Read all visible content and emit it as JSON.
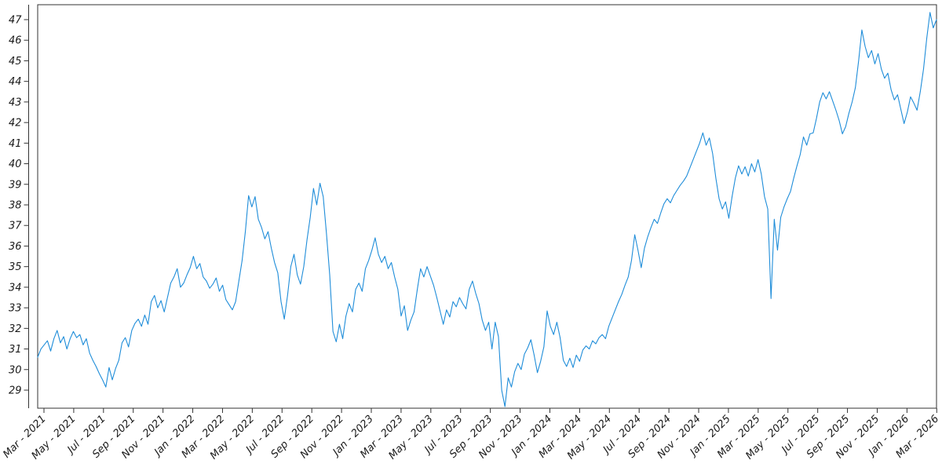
{
  "chart_data": {
    "type": "line",
    "title": "",
    "xlabel": "",
    "ylabel": "",
    "grid": false,
    "legend_position": "none",
    "line_color": "#1f8dd9",
    "axis_color": "#333333",
    "tick_label_color": "#1a1a1a",
    "ylim": [
      28.0,
      47.7
    ],
    "y_tick_values": [
      29,
      30,
      31,
      32,
      33,
      34,
      35,
      36,
      37,
      38,
      39,
      40,
      41,
      42,
      43,
      44,
      45,
      46,
      47
    ],
    "x_tick_labels": [
      "Mar - 2021",
      "May - 2021",
      "Jul - 2021",
      "Sep - 2021",
      "Nov - 2021",
      "Jan - 2022",
      "Mar - 2022",
      "May - 2022",
      "Jul - 2022",
      "Sep - 2022",
      "Nov - 2022",
      "Jan - 2023",
      "Mar - 2023",
      "May - 2023",
      "Jul - 2023",
      "Sep - 2023",
      "Nov - 2023",
      "Jan - 2024",
      "Mar - 2024",
      "May - 2024",
      "Jul - 2024",
      "Sep - 2024",
      "Nov - 2024",
      "Jan - 2025",
      "Mar - 2025",
      "May - 2025",
      "Jul - 2025",
      "Sep - 2025",
      "Nov - 2025",
      "Jan - 2026",
      "Mar - 2026"
    ],
    "x_range_label": "Mar 2021 to Mar 2026",
    "sampling": "weekly",
    "values": [
      30.6,
      31.0,
      31.2,
      31.4,
      30.9,
      31.5,
      31.9,
      31.3,
      31.6,
      31.0,
      31.5,
      31.85,
      31.55,
      31.7,
      31.2,
      31.5,
      30.8,
      30.45,
      30.15,
      29.8,
      29.5,
      29.15,
      30.1,
      29.5,
      30.05,
      30.45,
      31.3,
      31.55,
      31.1,
      31.9,
      32.25,
      32.45,
      32.1,
      32.65,
      32.2,
      33.3,
      33.6,
      33.0,
      33.35,
      32.8,
      33.5,
      34.2,
      34.5,
      34.9,
      34.0,
      34.2,
      34.6,
      34.95,
      35.5,
      34.9,
      35.15,
      34.5,
      34.3,
      33.95,
      34.15,
      34.45,
      33.8,
      34.1,
      33.4,
      33.15,
      32.9,
      33.3,
      34.3,
      35.3,
      36.7,
      38.45,
      37.9,
      38.4,
      37.3,
      36.9,
      36.35,
      36.7,
      35.9,
      35.2,
      34.7,
      33.3,
      32.45,
      33.6,
      35.0,
      35.6,
      34.6,
      34.15,
      35.0,
      36.3,
      37.4,
      38.8,
      38.0,
      39.05,
      38.4,
      36.6,
      34.6,
      31.85,
      31.35,
      32.2,
      31.5,
      32.6,
      33.2,
      32.8,
      33.9,
      34.2,
      33.8,
      34.9,
      35.3,
      35.8,
      36.4,
      35.6,
      35.2,
      35.5,
      34.9,
      35.2,
      34.5,
      33.9,
      32.6,
      33.1,
      31.9,
      32.4,
      32.8,
      33.9,
      34.9,
      34.5,
      35.0,
      34.55,
      34.1,
      33.5,
      32.85,
      32.2,
      32.9,
      32.55,
      33.3,
      33.05,
      33.5,
      33.2,
      32.95,
      33.9,
      34.3,
      33.7,
      33.2,
      32.4,
      31.9,
      32.3,
      31.0,
      32.3,
      31.6,
      29.0,
      28.2,
      29.6,
      29.15,
      29.9,
      30.3,
      30.0,
      30.75,
      31.05,
      31.45,
      30.7,
      29.85,
      30.4,
      31.1,
      32.85,
      32.1,
      31.7,
      32.3,
      31.55,
      30.45,
      30.15,
      30.55,
      30.1,
      30.7,
      30.4,
      30.95,
      31.15,
      31.0,
      31.4,
      31.25,
      31.55,
      31.7,
      31.5,
      32.1,
      32.5,
      32.9,
      33.3,
      33.65,
      34.1,
      34.5,
      35.3,
      36.55,
      35.8,
      34.95,
      35.9,
      36.45,
      36.9,
      37.3,
      37.1,
      37.6,
      38.05,
      38.3,
      38.1,
      38.45,
      38.7,
      38.95,
      39.15,
      39.4,
      39.8,
      40.2,
      40.6,
      41.0,
      41.5,
      40.9,
      41.25,
      40.5,
      39.3,
      38.3,
      37.8,
      38.15,
      37.35,
      38.4,
      39.3,
      39.9,
      39.5,
      39.85,
      39.4,
      40.0,
      39.6,
      40.2,
      39.5,
      38.4,
      37.8,
      33.45,
      37.3,
      35.8,
      37.4,
      37.9,
      38.3,
      38.65,
      39.3,
      39.9,
      40.45,
      41.3,
      40.9,
      41.45,
      41.5,
      42.2,
      43.0,
      43.45,
      43.15,
      43.5,
      43.05,
      42.6,
      42.1,
      41.45,
      41.8,
      42.45,
      43.0,
      43.7,
      45.0,
      46.5,
      45.7,
      45.15,
      45.5,
      44.85,
      45.35,
      44.6,
      44.15,
      44.4,
      43.6,
      43.1,
      43.35,
      42.65,
      41.95,
      42.5,
      43.25,
      42.95,
      42.6,
      43.5,
      44.6,
      46.1,
      47.35,
      46.6,
      47.0
    ]
  }
}
